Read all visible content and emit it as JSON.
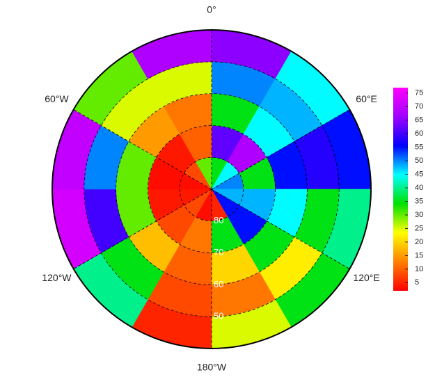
{
  "chart_data": {
    "type": "polar-map",
    "lon_ticks": [
      {
        "value": 0,
        "label": "0°"
      },
      {
        "value": 60,
        "label": "60°E"
      },
      {
        "value": 120,
        "label": "120°E"
      },
      {
        "value": 180,
        "label": "180°W"
      },
      {
        "value": -120,
        "label": "120°W"
      },
      {
        "value": -60,
        "label": "60°W"
      }
    ],
    "latlim": [
      90,
      40
    ],
    "lat_ticks": [
      80,
      70,
      60,
      50
    ],
    "lon": [
      15,
      45,
      75,
      105,
      135,
      165,
      -165,
      -135,
      -105,
      -75,
      -45,
      -15
    ],
    "lat_edges": [
      90,
      80,
      70,
      60,
      50,
      40
    ],
    "values": [
      [
        35,
        45,
        50,
        48,
        55,
        5,
        3,
        8,
        4,
        3,
        8,
        30
      ],
      [
        62,
        68,
        35,
        48,
        55,
        35,
        12,
        8,
        4,
        3,
        4,
        10
      ],
      [
        35,
        45,
        55,
        45,
        35,
        20,
        10,
        18,
        30,
        30,
        15,
        12
      ],
      [
        50,
        48,
        58,
        35,
        22,
        12,
        8,
        35,
        60,
        50,
        25,
        25
      ],
      [
        65,
        45,
        55,
        40,
        35,
        25,
        5,
        40,
        72,
        70,
        30,
        68
      ]
    ],
    "colormap": [
      "#ff0000",
      "#ff8000",
      "#ffff00",
      "#00e000",
      "#00ffff",
      "#0000ff",
      "#a000ff",
      "#ff00ff"
    ],
    "clim": [
      2,
      77
    ],
    "cticks": [
      5,
      10,
      15,
      20,
      25,
      30,
      35,
      40,
      45,
      50,
      55,
      60,
      65,
      70,
      75
    ]
  }
}
